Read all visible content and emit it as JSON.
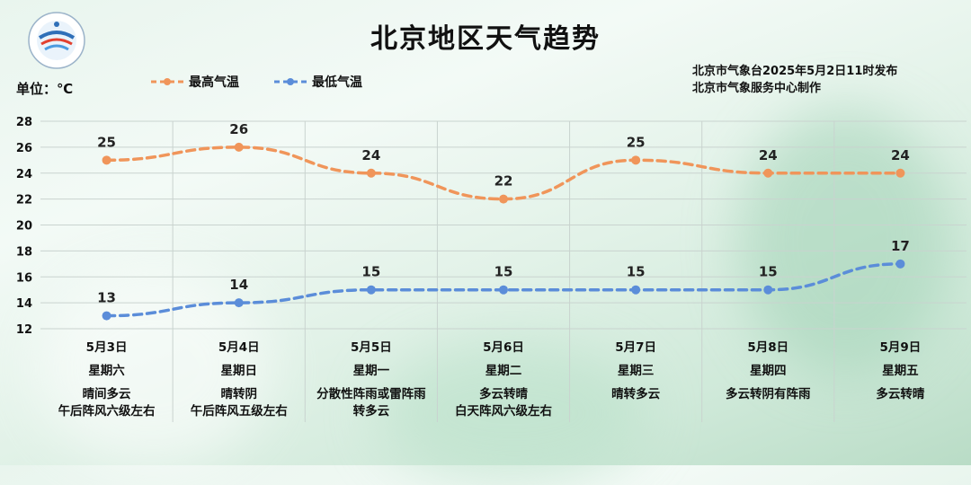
{
  "header": {
    "title": "北京地区天气趋势",
    "unit": "单位：℃",
    "source_line1": "北京市气象台2025年5月2日11时发布",
    "source_line2": "北京市气象服务中心制作"
  },
  "legend": {
    "high_label": "最高气温",
    "low_label": "最低气温"
  },
  "colors": {
    "high": "#f0955a",
    "low": "#5b8dd9",
    "grid": "#c9d3cf"
  },
  "days": [
    {
      "date": "5月3日",
      "weekday": "星期六",
      "weather1": "晴间多云",
      "weather2": "午后阵风六级左右"
    },
    {
      "date": "5月4日",
      "weekday": "星期日",
      "weather1": "晴转阴",
      "weather2": "午后阵风五级左右"
    },
    {
      "date": "5月5日",
      "weekday": "星期一",
      "weather1": "分散性阵雨或雷阵雨",
      "weather2": "转多云"
    },
    {
      "date": "5月6日",
      "weekday": "星期二",
      "weather1": "多云转晴",
      "weather2": "白天阵风六级左右"
    },
    {
      "date": "5月7日",
      "weekday": "星期三",
      "weather1": "晴转多云",
      "weather2": ""
    },
    {
      "date": "5月8日",
      "weekday": "星期四",
      "weather1": "多云转阴有阵雨",
      "weather2": ""
    },
    {
      "date": "5月9日",
      "weekday": "星期五",
      "weather1": "多云转晴",
      "weather2": ""
    }
  ],
  "chart_data": {
    "type": "line",
    "title": "北京地区天气趋势",
    "ylabel": "单位：℃",
    "categories": [
      "5月3日",
      "5月4日",
      "5月5日",
      "5月6日",
      "5月7日",
      "5月8日",
      "5月9日"
    ],
    "series": [
      {
        "name": "最高气温",
        "values": [
          25,
          26,
          24,
          22,
          25,
          24,
          24
        ]
      },
      {
        "name": "最低气温",
        "values": [
          13,
          14,
          15,
          15,
          15,
          15,
          17
        ]
      }
    ],
    "ylim": [
      12,
      28
    ],
    "yticks": [
      12,
      14,
      16,
      18,
      20,
      22,
      24,
      26,
      28
    ],
    "grid": true,
    "legend": "top-left",
    "line_style": "dashed"
  }
}
